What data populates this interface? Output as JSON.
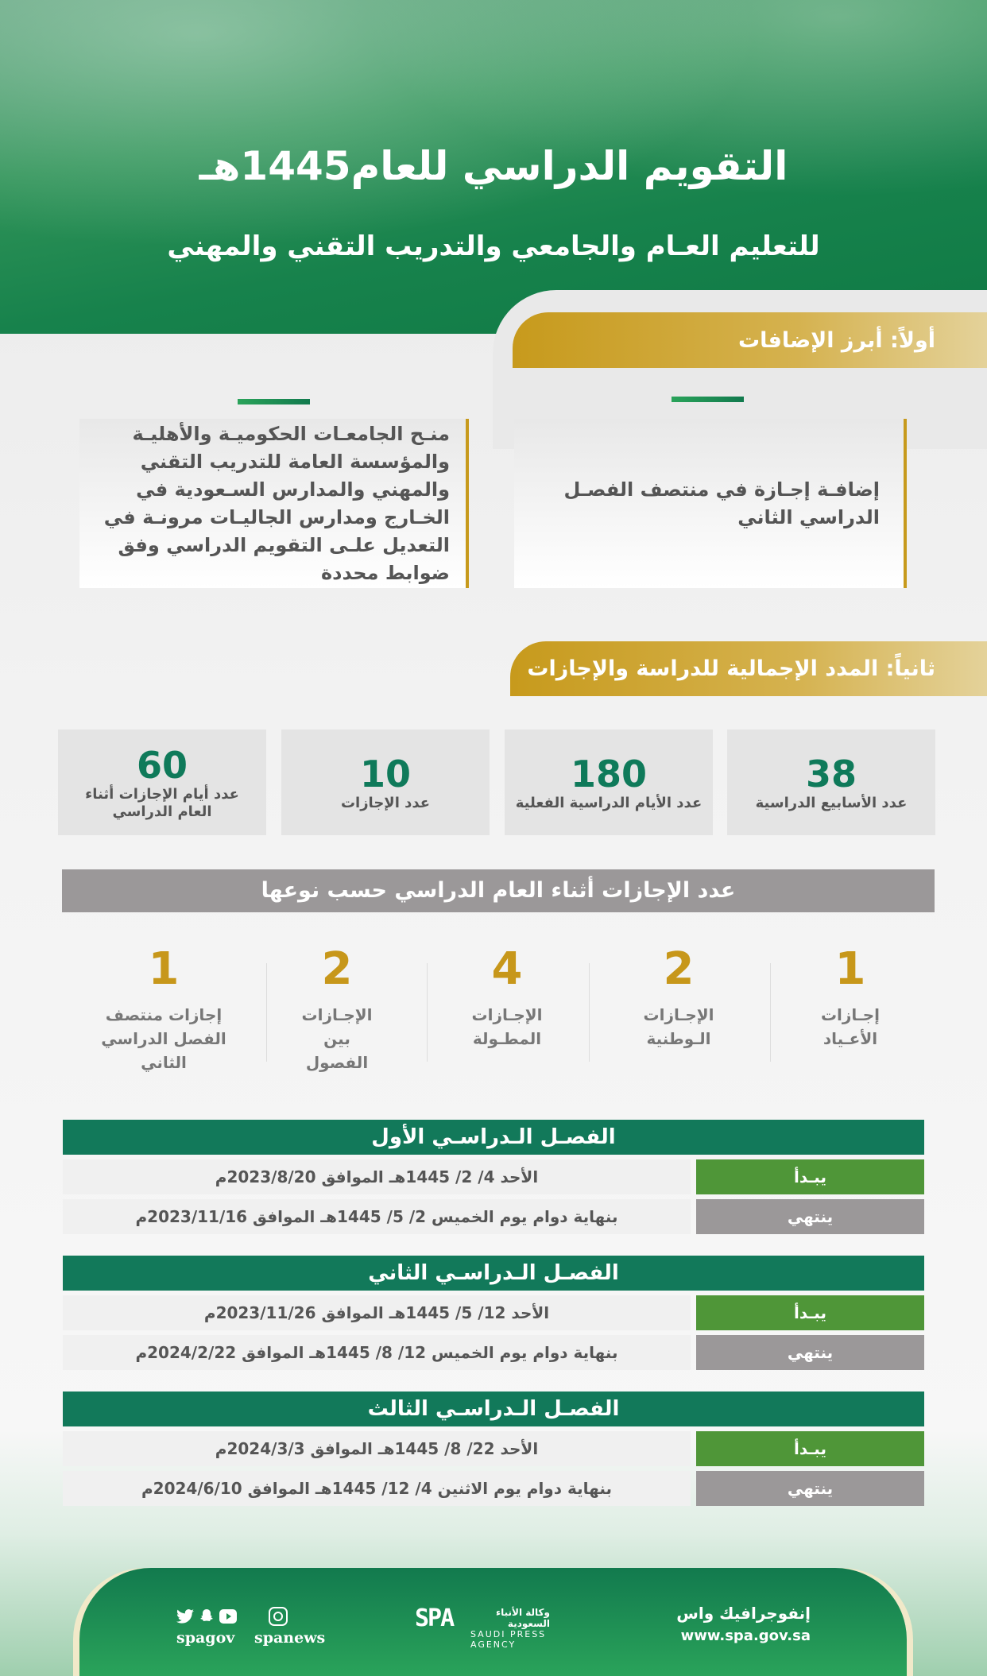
{
  "header": {
    "title": "التقويم الدراسي للعام1445هـ",
    "subtitle": "للتعليم العـام والجامعي والتدريب التقني والمهني"
  },
  "section1": {
    "title": "أولاً: أبرز الإضافات",
    "cards": [
      "إضافـة إجـازة في منتصف الفصـل الدراسي الثاني",
      "منـح الجامعـات الحكوميـة والأهليـة والمؤسسة العامة للتدريب التقني والمهني والمدارس السـعودية في الخـارج ومدارس الجاليـات مرونـة في التعديل علـى التقويم الدراسي وفق ضوابط محددة"
    ]
  },
  "section2": {
    "title": "ثانياً: المدد الإجمالية للدراسة والإجازات",
    "stats": [
      {
        "value": "38",
        "label": "عدد الأسابيع الدراسية"
      },
      {
        "value": "180",
        "label": "عدد الأيام الدراسية الفعلية"
      },
      {
        "value": "10",
        "label": "عدد الإجازات"
      },
      {
        "value": "60",
        "label": "عدد أيام الإجازات أثناء العام الدراسي"
      }
    ],
    "by_type_title": "عدد الإجازات أثناء العام الدراسي حسب نوعها",
    "types": [
      {
        "value": "1",
        "label": "إجـازات الأعـياد"
      },
      {
        "value": "2",
        "label": "الإجـازات الـوطنية"
      },
      {
        "value": "4",
        "label": "الإجـازات المطـولة"
      },
      {
        "value": "2",
        "label": "الإجـازات بين الفصول"
      },
      {
        "value": "1",
        "label": "إجازات منتصف الفصل الدراسي الثاني"
      }
    ]
  },
  "semesters": [
    {
      "title": "الفصـل الـدراسـي الأول",
      "start_label": "يبـدأ",
      "start": "الأحد 4/ 2/ 1445هـ الموافق 2023/8/20م",
      "end_label": "ينتهي",
      "end": "بنهاية دوام يوم الخميس 2/ 5/ 1445هـ الموافق 2023/11/16م"
    },
    {
      "title": "الفصـل الـدراسـي الثاني",
      "start_label": "يبـدأ",
      "start": "الأحد 12/ 5/ 1445هـ الموافق 2023/11/26م",
      "end_label": "ينتهي",
      "end": "بنهاية دوام يوم الخميس 12/ 8/ 1445هـ الموافق 2024/2/22م"
    },
    {
      "title": "الفصـل الـدراسـي الثالث",
      "start_label": "يبـدأ",
      "start": "الأحد 22/ 8/ 1445هـ الموافق 2024/3/3م",
      "end_label": "ينتهي",
      "end": "بنهاية دوام يوم الاثنين 4/ 12/ 1445هـ الموافق 2024/6/10م"
    }
  ],
  "footer": {
    "brand": "إنفوجرافيك واس",
    "url": "www.spa.gov.sa",
    "logo_ar": "وكالة الأنباء السعودية",
    "logo_en": "SAUDI PRESS AGENCY",
    "logo_mark": "SPA",
    "social1": "spagov",
    "social2": "spanews",
    "icons": [
      "twitter-icon",
      "snapchat-icon",
      "youtube-icon",
      "instagram-icon"
    ]
  }
}
